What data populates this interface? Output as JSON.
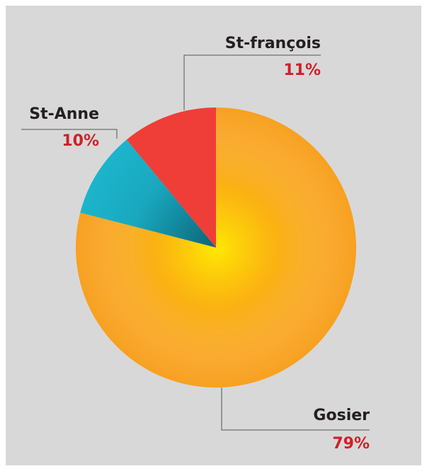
{
  "chart_data": {
    "type": "pie",
    "categories": [
      "Gosier",
      "St-Anne",
      "St-françois"
    ],
    "values": [
      79,
      10,
      11
    ],
    "value_labels": [
      "79%",
      "10%",
      "11%"
    ],
    "colors": [
      "#f8a01e",
      "#1cb5cc",
      "#ee3e37"
    ]
  }
}
